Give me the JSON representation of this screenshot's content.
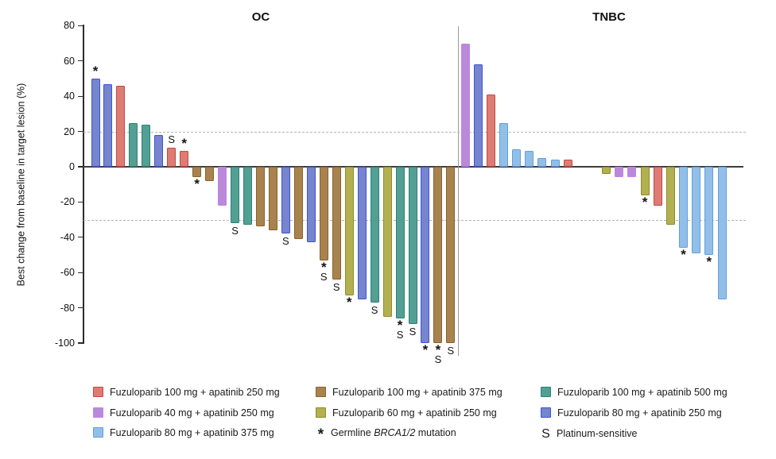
{
  "chart_data": {
    "type": "bar",
    "subtype": "waterfall",
    "ylabel": "Best change from baseline in target lesion (%)",
    "ylim": [
      -100,
      80
    ],
    "yticks": [
      80,
      60,
      40,
      20,
      0,
      -20,
      -40,
      -60,
      -80,
      -100
    ],
    "reference_lines": [
      20,
      -30
    ],
    "grid": "dashed-reference-lines-only",
    "legend_position": "bottom",
    "groups": {
      "fz100_ap250": {
        "label": "Fuzuloparib 100 mg + apatinib 250 mg",
        "fill": "#DD7C74",
        "border": "#C3493F"
      },
      "fz100_ap375": {
        "label": "Fuzuloparib 100 mg + apatinib 375 mg",
        "fill": "#A8824F",
        "border": "#8A6228"
      },
      "fz100_ap500": {
        "label": "Fuzuloparib 100 mg + apatinib 500 mg",
        "fill": "#52A093",
        "border": "#2F8174"
      },
      "fz40_ap250": {
        "label": "Fuzuloparib 40 mg + apatinib 250 mg",
        "fill": "#B98AD8",
        "border": "#C57FEF"
      },
      "fz60_ap250": {
        "label": "Fuzuloparib 60 mg + apatinib 250 mg",
        "fill": "#B3B052",
        "border": "#8E8C26"
      },
      "fz80_ap250": {
        "label": "Fuzuloparib 80 mg + apatinib 250 mg",
        "fill": "#7585CE",
        "border": "#4153D6"
      },
      "fz80_ap375": {
        "label": "Fuzuloparib 80 mg + apatinib 375 mg",
        "fill": "#92BFE8",
        "border": "#5FA0DD"
      }
    },
    "annotation_symbols": {
      "asterisk": {
        "symbol": "*",
        "meaning_pre": "Germline ",
        "meaning_italic": "BRCA1/2",
        "meaning_post": " mutation"
      },
      "s": {
        "symbol": "S",
        "meaning": "Platinum-sensitive"
      }
    },
    "panels": [
      {
        "title": "OC",
        "bars": [
          {
            "value": 50,
            "group": "fz80_ap250",
            "mark": "*"
          },
          {
            "value": 47,
            "group": "fz80_ap250"
          },
          {
            "value": 46,
            "group": "fz100_ap250"
          },
          {
            "value": 25,
            "group": "fz100_ap500"
          },
          {
            "value": 24,
            "group": "fz100_ap500"
          },
          {
            "value": 18,
            "group": "fz80_ap250"
          },
          {
            "value": 11,
            "group": "fz100_ap250",
            "mark": "S"
          },
          {
            "value": 9,
            "group": "fz100_ap250",
            "mark": "*"
          },
          {
            "value": -6,
            "group": "fz100_ap375",
            "mark": "*"
          },
          {
            "value": -8,
            "group": "fz100_ap375"
          },
          {
            "value": -22,
            "group": "fz40_ap250"
          },
          {
            "value": -32,
            "group": "fz100_ap500",
            "mark": "S"
          },
          {
            "value": -33,
            "group": "fz100_ap500"
          },
          {
            "value": -34,
            "group": "fz100_ap375"
          },
          {
            "value": -36,
            "group": "fz100_ap375"
          },
          {
            "value": -38,
            "group": "fz80_ap250",
            "mark": "S"
          },
          {
            "value": -41,
            "group": "fz100_ap375"
          },
          {
            "value": -43,
            "group": "fz80_ap250"
          },
          {
            "value": -53,
            "group": "fz100_ap375",
            "mark": "*S"
          },
          {
            "value": -64,
            "group": "fz100_ap375",
            "mark": "S"
          },
          {
            "value": -73,
            "group": "fz60_ap250",
            "mark": "*"
          },
          {
            "value": -75,
            "group": "fz80_ap250"
          },
          {
            "value": -77,
            "group": "fz100_ap500",
            "mark": "S"
          },
          {
            "value": -85,
            "group": "fz60_ap250"
          },
          {
            "value": -86,
            "group": "fz100_ap500",
            "mark": "*S"
          },
          {
            "value": -89,
            "group": "fz100_ap500",
            "mark": "S"
          },
          {
            "value": -100,
            "group": "fz80_ap250",
            "mark": "*"
          },
          {
            "value": -100,
            "group": "fz100_ap375",
            "mark": "*S"
          },
          {
            "value": -100,
            "group": "fz100_ap375",
            "mark": "S"
          }
        ]
      },
      {
        "title": "TNBC",
        "bars": [
          {
            "value": 70,
            "group": "fz40_ap250"
          },
          {
            "value": 58,
            "group": "fz80_ap250"
          },
          {
            "value": 41,
            "group": "fz100_ap250"
          },
          {
            "value": 25,
            "group": "fz80_ap375"
          },
          {
            "value": 10,
            "group": "fz80_ap375"
          },
          {
            "value": 9,
            "group": "fz80_ap375"
          },
          {
            "value": 5,
            "group": "fz80_ap375"
          },
          {
            "value": 4,
            "group": "fz80_ap375"
          },
          {
            "value": 4,
            "group": "fz100_ap250"
          },
          {
            "value": 0,
            "group": null
          },
          {
            "value": 0,
            "group": null
          },
          {
            "value": -4,
            "group": "fz60_ap250"
          },
          {
            "value": -6,
            "group": "fz40_ap250"
          },
          {
            "value": -6,
            "group": "fz40_ap250"
          },
          {
            "value": -16,
            "group": "fz60_ap250",
            "mark": "*"
          },
          {
            "value": -22,
            "group": "fz100_ap250"
          },
          {
            "value": -33,
            "group": "fz60_ap250"
          },
          {
            "value": -46,
            "group": "fz80_ap375",
            "mark": "*"
          },
          {
            "value": -49,
            "group": "fz80_ap375"
          },
          {
            "value": -50,
            "group": "fz80_ap375",
            "mark": "*"
          },
          {
            "value": -75,
            "group": "fz80_ap375"
          }
        ]
      }
    ],
    "legend_items": [
      {
        "type": "swatch",
        "group": "fz100_ap250"
      },
      {
        "type": "swatch",
        "group": "fz100_ap375"
      },
      {
        "type": "swatch",
        "group": "fz100_ap500"
      },
      {
        "type": "swatch",
        "group": "fz40_ap250"
      },
      {
        "type": "swatch",
        "group": "fz60_ap250"
      },
      {
        "type": "swatch",
        "group": "fz80_ap250"
      },
      {
        "type": "swatch",
        "group": "fz80_ap375"
      },
      {
        "type": "symbol",
        "symbol": "*",
        "label_pre": "Germline ",
        "label_italic": "BRCA1/2",
        "label_post": " mutation"
      },
      {
        "type": "symbol",
        "symbol": "S",
        "label": "Platinum-sensitive"
      }
    ]
  }
}
